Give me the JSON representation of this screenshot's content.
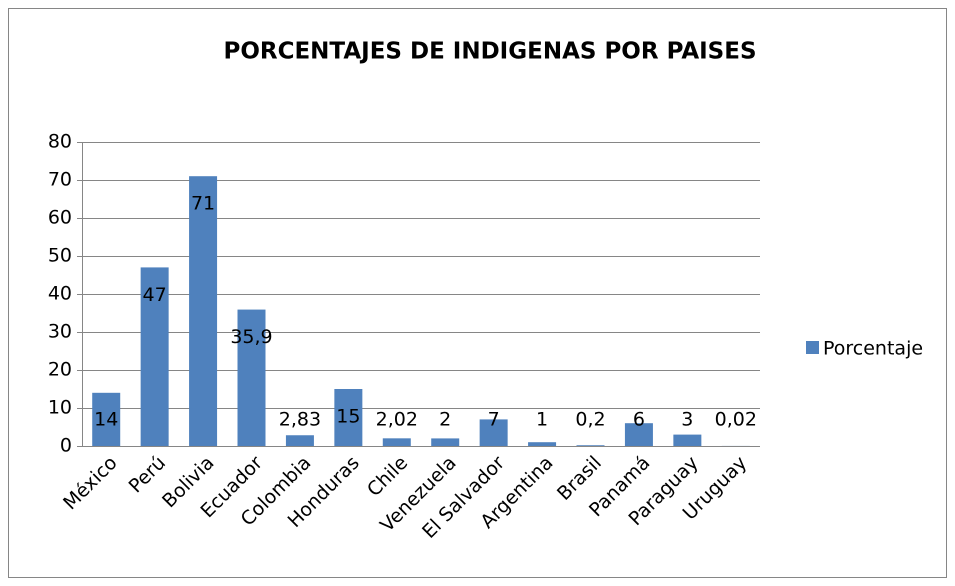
{
  "chart_data": {
    "type": "bar",
    "title": "PORCENTAJES DE INDIGENAS POR PAISES",
    "categories": [
      "México",
      "Perú",
      "Bolivia",
      "Ecuador",
      "Colombia",
      "Honduras",
      "Chile",
      "Venezuela",
      "El Salvador",
      "Argentina",
      "Brasil",
      "Panamá",
      "Paraguay",
      "Uruguay"
    ],
    "series": [
      {
        "name": "Porcentaje",
        "color": "#4f81bd",
        "values": [
          14,
          47,
          71,
          35.9,
          2.83,
          15,
          2.02,
          2,
          7,
          1,
          0.2,
          6,
          3,
          0.02
        ],
        "value_labels": [
          "14",
          "47",
          "71",
          "35,9",
          "2,83",
          "15",
          "2,02",
          "2",
          "7",
          "1",
          "0,2",
          "6",
          "3",
          "0,02"
        ]
      }
    ],
    "ylim": [
      0,
      80
    ],
    "yticks": [
      0,
      10,
      20,
      30,
      40,
      50,
      60,
      70,
      80
    ],
    "grid": true,
    "legend": "right"
  }
}
